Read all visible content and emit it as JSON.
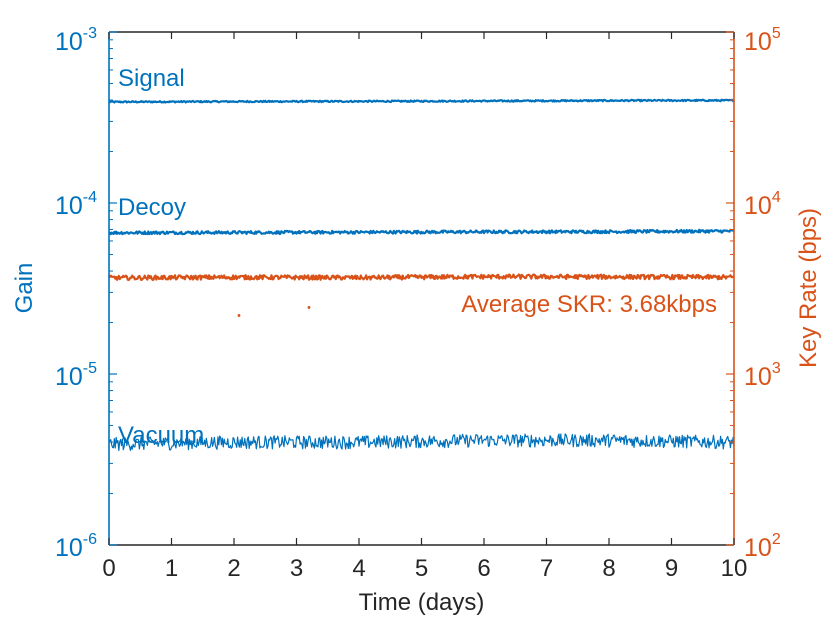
{
  "chart_data": {
    "type": "line",
    "xlabel": "Time (days)",
    "ylabel_left": "Gain",
    "ylabel_right": "Key Rate (bps)",
    "xlim": [
      0,
      10
    ],
    "x_ticks": [
      "0",
      "1",
      "2",
      "3",
      "4",
      "5",
      "6",
      "7",
      "8",
      "9",
      "10"
    ],
    "ylim_left": [
      1e-06,
      0.001
    ],
    "ylim_right": [
      100,
      100000
    ],
    "y_left_ticks": [
      {
        "base": "10",
        "exp": "-6"
      },
      {
        "base": "10",
        "exp": "-5"
      },
      {
        "base": "10",
        "exp": "-4"
      },
      {
        "base": "10",
        "exp": "-3"
      }
    ],
    "y_right_ticks": [
      {
        "base": "10",
        "exp": "2"
      },
      {
        "base": "10",
        "exp": "3"
      },
      {
        "base": "10",
        "exp": "4"
      },
      {
        "base": "10",
        "exp": "5"
      }
    ],
    "grid": false,
    "colors": {
      "gain": "#0072BD",
      "keyrate": "#D95319",
      "axis": "#262626"
    },
    "series": [
      {
        "name": "Signal",
        "axis": "left",
        "x": [
          0,
          2,
          4,
          6,
          8,
          10
        ],
        "values": [
          0.00039,
          0.000392,
          0.000393,
          0.000395,
          0.000397,
          0.000398
        ],
        "noise": 0.01
      },
      {
        "name": "Decoy",
        "axis": "left",
        "x": [
          0,
          2,
          4,
          6,
          8,
          10
        ],
        "values": [
          6.7e-05,
          6.72e-05,
          6.75e-05,
          6.78e-05,
          6.8e-05,
          6.85e-05
        ],
        "noise": 0.02
      },
      {
        "name": "Vacuum",
        "axis": "left",
        "x": [
          0,
          2,
          4,
          6,
          8,
          10
        ],
        "values": [
          3.9e-06,
          4e-06,
          4e-06,
          4.1e-06,
          4.1e-06,
          4e-06
        ],
        "noise": 0.09
      },
      {
        "name": "SKR",
        "axis": "right",
        "x": [
          0,
          2,
          4,
          6,
          8,
          10
        ],
        "values": [
          3650,
          3680,
          3660,
          3710,
          3700,
          3680
        ],
        "noise": 0.03
      }
    ],
    "outliers": [
      {
        "x": 2.08,
        "y": 2200
      },
      {
        "x": 3.2,
        "y": 2450
      }
    ],
    "annotations": {
      "signal": "Signal",
      "decoy": "Decoy",
      "vacuum": "Vacuum",
      "skr": "Average SKR: 3.68kbps"
    }
  }
}
